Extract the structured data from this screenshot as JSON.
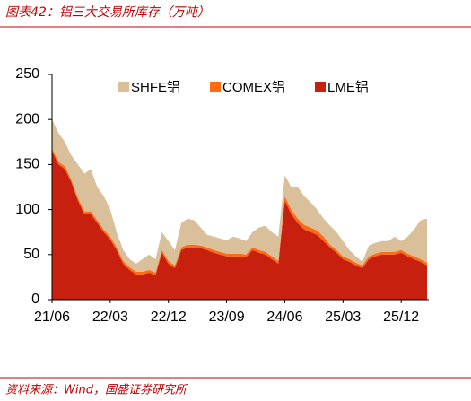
{
  "chart_data": {
    "type": "stacked_area",
    "title": "图表42：铝三大交易所库存（万吨）",
    "source": "资料来源：Wind，国盛证券研究所",
    "categories": [
      "21/06",
      null,
      null,
      null,
      null,
      null,
      null,
      null,
      null,
      "22/03",
      null,
      null,
      null,
      null,
      null,
      null,
      null,
      null,
      "22/12",
      null,
      null,
      null,
      null,
      null,
      null,
      null,
      null,
      "23/09",
      null,
      null,
      null,
      null,
      null,
      null,
      null,
      null,
      "24/06",
      null,
      null,
      null,
      null,
      null,
      null,
      null,
      null,
      "25/03",
      null,
      null,
      null,
      null,
      null,
      null,
      null,
      null,
      "25/12",
      null,
      null,
      null,
      null
    ],
    "series": [
      {
        "name": "SHFE铝",
        "color": "#d9bf9a",
        "values": [
          32,
          32,
          27,
          27,
          37,
          42,
          47,
          37,
          37,
          30,
          17,
          12,
          9,
          9,
          14,
          17,
          15,
          20,
          22,
          17,
          27,
          29,
          27,
          20,
          14,
          15,
          15,
          15,
          19,
          17,
          15,
          17,
          25,
          29,
          27,
          27,
          23,
          25,
          35,
          32,
          28,
          23,
          20,
          21,
          20,
          17,
          10,
          7,
          4,
          12,
          12,
          12,
          12,
          17,
          10,
          19,
          30,
          43,
          49
        ]
      },
      {
        "name": "COMEX铝",
        "color": "#ff6a13",
        "values": [
          3,
          3,
          3,
          3,
          3,
          3,
          3,
          3,
          3,
          3,
          3,
          3,
          3,
          3,
          3,
          3,
          3,
          3,
          3,
          3,
          3,
          3,
          3,
          3,
          3,
          3,
          3,
          3,
          3,
          3,
          3,
          3,
          3,
          3,
          3,
          3,
          5,
          5,
          5,
          5,
          5,
          5,
          5,
          3,
          3,
          3,
          3,
          3,
          3,
          3,
          3,
          3,
          3,
          3,
          3,
          3,
          3,
          3,
          3
        ]
      },
      {
        "name": "LME铝",
        "color": "#c8200f",
        "values": [
          165,
          150,
          145,
          130,
          110,
          95,
          95,
          85,
          75,
          67,
          55,
          40,
          33,
          28,
          28,
          30,
          27,
          52,
          40,
          35,
          55,
          58,
          58,
          57,
          55,
          52,
          50,
          48,
          48,
          48,
          47,
          55,
          52,
          50,
          45,
          40,
          110,
          95,
          85,
          78,
          75,
          72,
          65,
          58,
          52,
          45,
          42,
          38,
          35,
          45,
          48,
          50,
          50,
          50,
          52,
          48,
          45,
          42,
          38
        ]
      }
    ],
    "ylim": [
      0,
      250
    ],
    "yticks": [
      0,
      50,
      100,
      150,
      200,
      250
    ],
    "grid": false,
    "legend": "top"
  }
}
